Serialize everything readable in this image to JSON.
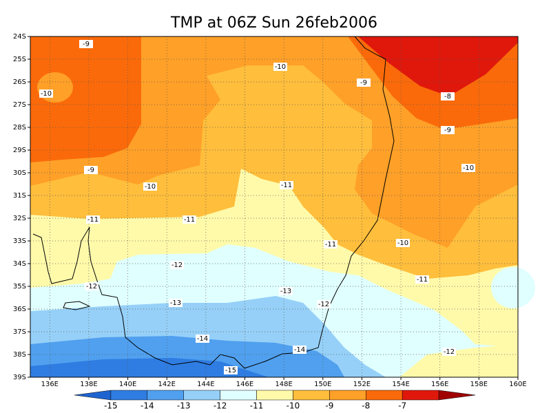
{
  "title": "TMP at 06Z Sun 26feb2006",
  "lat_labels": [
    "24S",
    "25S",
    "26S",
    "27S",
    "28S",
    "29S",
    "30S",
    "31S",
    "32S",
    "33S",
    "34S",
    "35S",
    "36S",
    "37S",
    "38S",
    "39S"
  ],
  "lon_labels": [
    "136E",
    "138E",
    "140E",
    "142E",
    "144E",
    "146E",
    "148E",
    "150E",
    "152E",
    "154E",
    "156E",
    "158E",
    "160E"
  ],
  "colorbar": {
    "labels": [
      "-15",
      "-14",
      "-13",
      "-12",
      "-11",
      "-10",
      "-9",
      "-8",
      "-7"
    ],
    "colors": [
      "#1e64d0",
      "#2f7de2",
      "#50a0ef",
      "#96d0f8",
      "#e0ffff",
      "#fffaaa",
      "#ffbe3c",
      "#ffa028",
      "#fa6a0a",
      "#e0180c",
      "#a00000"
    ]
  },
  "contour_labels": [
    "-9",
    "-10",
    "-10",
    "-9",
    "-8",
    "-9",
    "-10",
    "-9",
    "-10",
    "-11",
    "-11",
    "-11",
    "-11",
    "-10",
    "-12",
    "-11",
    "-12",
    "-13",
    "-13",
    "-12",
    "-14",
    "-14",
    "-12",
    "-15"
  ]
}
